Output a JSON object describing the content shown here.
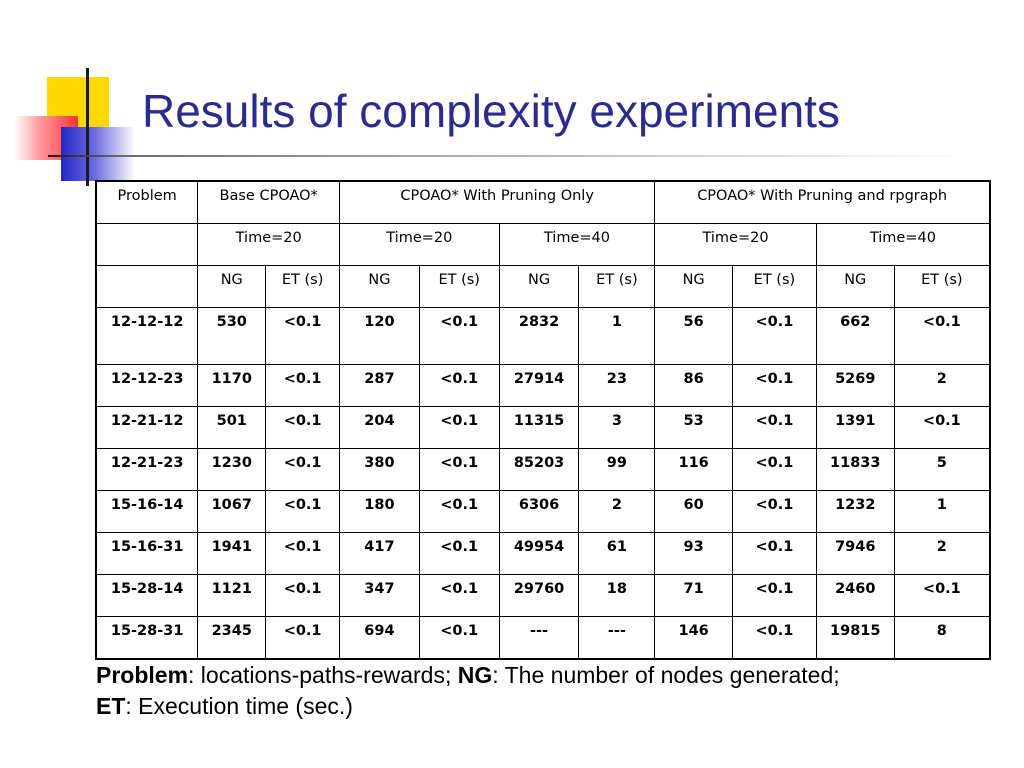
{
  "slide": {
    "title": "Results of complexity experiments"
  },
  "table": {
    "header1": {
      "problem": "Problem",
      "base": "Base CPOAO*",
      "pruning": "CPOAO* With Pruning Only",
      "pruning_rpg": "CPOAO* With Pruning and rpgraph"
    },
    "header2": [
      "Time=20",
      "Time=20",
      "Time=40",
      "Time=20",
      "Time=40"
    ],
    "header3": [
      "NG",
      "ET (s)",
      "NG",
      "ET (s)",
      "NG",
      "ET (s)",
      "NG",
      "ET (s)",
      "NG",
      "ET (s)"
    ],
    "rows": [
      [
        "12-12-12",
        "530",
        "<0.1",
        "120",
        "<0.1",
        "2832",
        "1",
        "56",
        "<0.1",
        "662",
        "<0.1"
      ],
      [
        "12-12-23",
        "1170",
        "<0.1",
        "287",
        "<0.1",
        "27914",
        "23",
        "86",
        "<0.1",
        "5269",
        "2"
      ],
      [
        "12-21-12",
        "501",
        "<0.1",
        "204",
        "<0.1",
        "11315",
        "3",
        "53",
        "<0.1",
        "1391",
        "<0.1"
      ],
      [
        "12-21-23",
        "1230",
        "<0.1",
        "380",
        "<0.1",
        "85203",
        "99",
        "116",
        "<0.1",
        "11833",
        "5"
      ],
      [
        "15-16-14",
        "1067",
        "<0.1",
        "180",
        "<0.1",
        "6306",
        "2",
        "60",
        "<0.1",
        "1232",
        "1"
      ],
      [
        "15-16-31",
        "1941",
        "<0.1",
        "417",
        "<0.1",
        "49954",
        "61",
        "93",
        "<0.1",
        "7946",
        "2"
      ],
      [
        "15-28-14",
        "1121",
        "<0.1",
        "347",
        "<0.1",
        "29760",
        "18",
        "71",
        "<0.1",
        "2460",
        "<0.1"
      ],
      [
        "15-28-31",
        "2345",
        "<0.1",
        "694",
        "<0.1",
        "---",
        "---",
        "146",
        "<0.1",
        "19815",
        "8"
      ]
    ]
  },
  "caption": {
    "term1": "Problem",
    "def1": ": locations-paths-rewards; ",
    "term2": "NG",
    "def2": ": The number of nodes generated;",
    "term3": "ET",
    "def3": ": Execution time (sec.)"
  },
  "decor": {
    "title_color": "#2b2b8f",
    "accent_yellow": "#ffd800",
    "accent_red": "#ff3333",
    "accent_blue": "#2626c8"
  }
}
